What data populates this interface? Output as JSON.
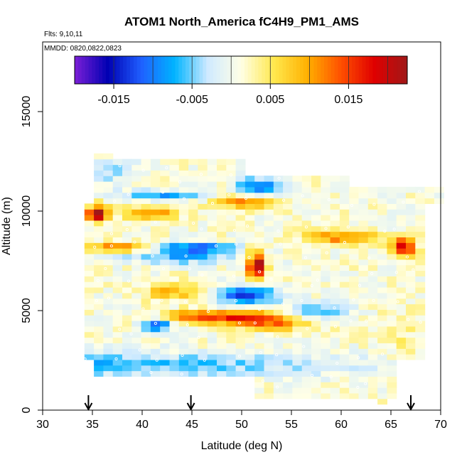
{
  "chart_data": {
    "type": "heatmap",
    "title": "ATOM1 North_America fC4H9_PM1_AMS",
    "annotations": {
      "flights": "Flts: 9,10,11",
      "dates": "MMDD: 0820,0822,0823"
    },
    "xlabel": "Latitude (deg N)",
    "ylabel": "Altitude (m)",
    "xlim": [
      30,
      70
    ],
    "ylim": [
      0,
      18500
    ],
    "x_ticks": [
      "30",
      "35",
      "40",
      "45",
      "50",
      "55",
      "60",
      "65",
      "70"
    ],
    "y_ticks": [
      "0",
      "5000",
      "10000",
      "15000"
    ],
    "colorbar": {
      "range": [
        -0.02,
        0.0225
      ],
      "tick_labels": [
        "-0.015",
        "-0.005",
        "0.005",
        "0.015"
      ],
      "tick_values": [
        -0.015,
        -0.005,
        0.005,
        0.015
      ]
    },
    "colors": {
      "scale": [
        "#7b1fd6",
        "#0000b3",
        "#1f5fff",
        "#00b4ff",
        "#cfeaff",
        "#ffffe6",
        "#ffe84d",
        "#ffb000",
        "#ff5000",
        "#e00000",
        "#a01818"
      ],
      "marker": "#ffffff",
      "arrow": "#000000"
    },
    "flight_marker_latitudes": [
      34.6,
      44.9,
      67.0
    ],
    "grid": false
  }
}
